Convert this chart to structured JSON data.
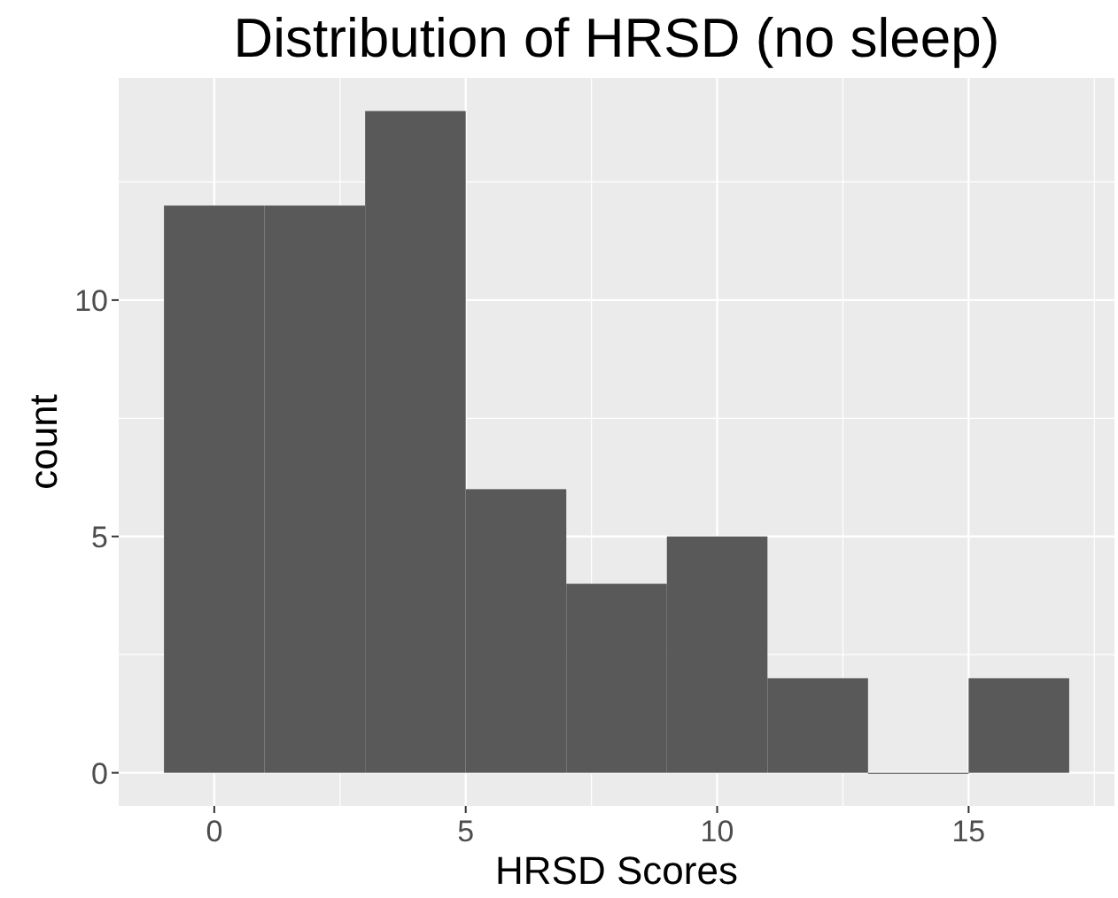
{
  "chart_data": {
    "type": "histogram",
    "title": "Distribution of HRSD (no sleep)",
    "xlabel": "HRSD Scores",
    "ylabel": "count",
    "bins": [
      -1,
      1,
      3,
      5,
      7,
      9,
      11,
      13,
      15,
      17
    ],
    "values": [
      12,
      12,
      14,
      6,
      4,
      5,
      2,
      0,
      2
    ],
    "color": "#595959",
    "xlim": [
      -1.9,
      17.9
    ],
    "xticks": [
      0,
      5,
      10,
      15
    ],
    "ylim": [
      -0.7,
      14.7
    ],
    "yticks": [
      0,
      5,
      10
    ],
    "grid": true
  }
}
